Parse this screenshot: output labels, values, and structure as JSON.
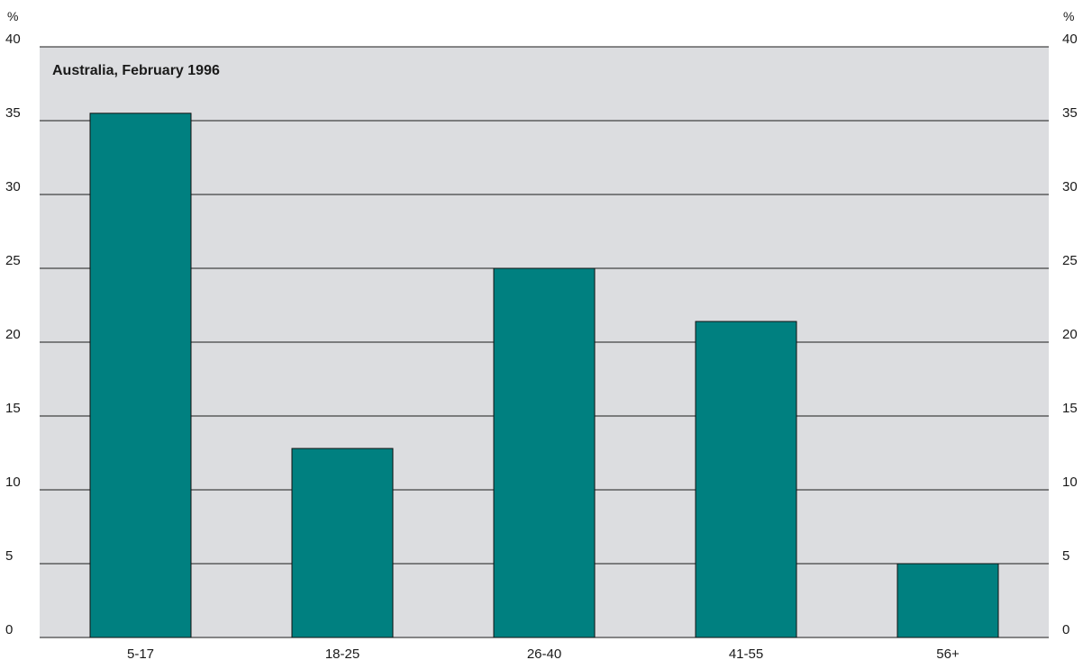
{
  "chart_data": {
    "type": "bar",
    "title": "Australia, February 1996",
    "unit_left": "%",
    "unit_right": "%",
    "categories": [
      "5-17",
      "18-25",
      "26-40",
      "41-55",
      "56+"
    ],
    "values": [
      35.5,
      12.8,
      25.0,
      21.4,
      5.0
    ],
    "ylim": [
      0,
      40
    ],
    "yticks": [
      "0",
      "5",
      "10",
      "15",
      "20",
      "25",
      "30",
      "35",
      "40"
    ],
    "grid": true,
    "legend": "none",
    "colors": {
      "bar": "#008080",
      "plot_background": "#dcdde0",
      "grid": "#1a1a1a"
    }
  }
}
